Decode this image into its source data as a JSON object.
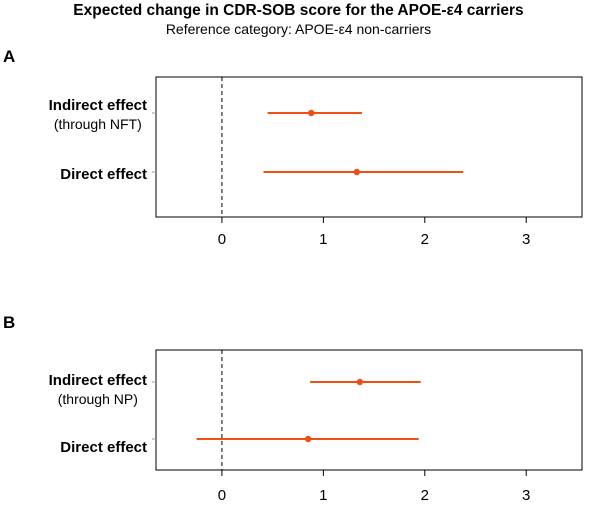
{
  "title": "Expected change in CDR-SOB score for the APOE-ε4 carriers",
  "subtitle": "Reference category: APOE-ε4 non-carriers",
  "colors": {
    "effect": "#F04E13",
    "reference_line": "#000000",
    "frame": "#000000"
  },
  "chart_data": [
    {
      "type": "forest",
      "panel_label": "A",
      "rows": [
        {
          "label": "Indirect effect",
          "sublabel": "(through NFT)",
          "estimate": 0.88,
          "ci": [
            0.45,
            1.38
          ]
        },
        {
          "label": "Direct effect",
          "sublabel": "",
          "estimate": 1.33,
          "ci": [
            0.41,
            2.38
          ]
        }
      ],
      "x_ticks": [
        "0",
        "1",
        "2",
        "3"
      ],
      "xlim": [
        -0.65,
        3.55
      ],
      "reference_line": 0
    },
    {
      "type": "forest",
      "panel_label": "B",
      "rows": [
        {
          "label": "Indirect effect",
          "sublabel": "(through NP)",
          "estimate": 1.36,
          "ci": [
            0.87,
            1.96
          ]
        },
        {
          "label": "Direct effect",
          "sublabel": "",
          "estimate": 0.85,
          "ci": [
            -0.25,
            1.94
          ]
        }
      ],
      "x_ticks": [
        "0",
        "1",
        "2",
        "3"
      ],
      "xlim": [
        -0.65,
        3.55
      ],
      "reference_line": 0
    }
  ]
}
